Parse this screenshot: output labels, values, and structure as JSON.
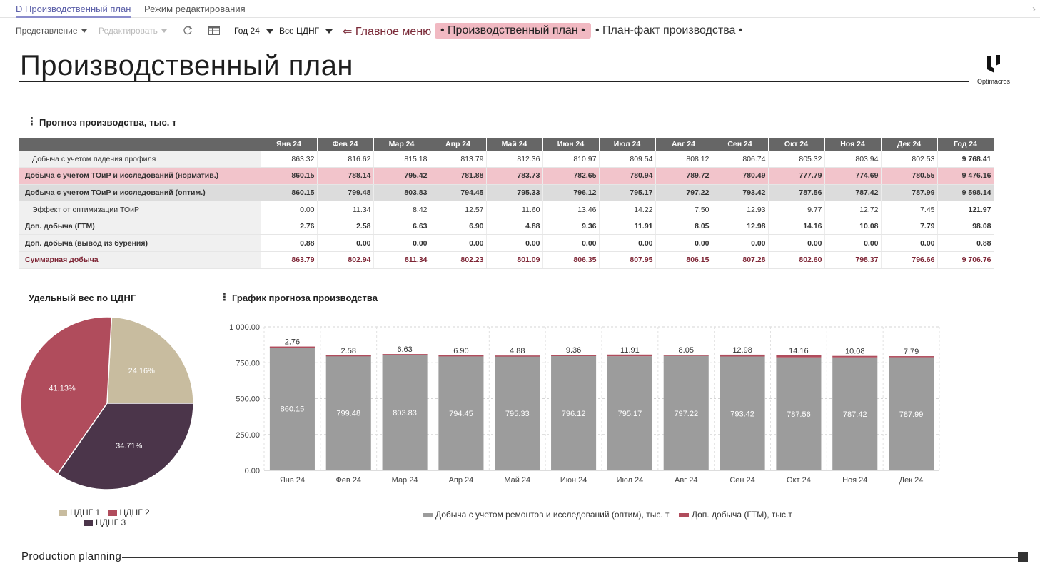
{
  "tabs": [
    {
      "label": "D Производственный план"
    },
    {
      "label": "Режим редактирования"
    }
  ],
  "toolbar": {
    "view_label": "Представление",
    "edit_label": "Редактировать",
    "year_label": "Год 24",
    "cdng_label": "Все ЦДНГ",
    "nav_main": "⇐ Главное меню",
    "nav_plan": "• Производственный план •",
    "nav_planfact": "• План-факт производства •"
  },
  "page": {
    "title": "Производственный план",
    "logo_text": "Optimacros",
    "footer_label": "Production  planning"
  },
  "forecast_table": {
    "title": "Прогноз производства, тыс. т",
    "columns": [
      "Янв 24",
      "Фев 24",
      "Мар 24",
      "Апр 24",
      "Май 24",
      "Июн 24",
      "Июл 24",
      "Авг 24",
      "Сен 24",
      "Окт 24",
      "Ноя 24",
      "Дек 24",
      "Год 24"
    ],
    "rows": [
      {
        "label": "Добыча с учетом падения профиля",
        "values": [
          "863.32",
          "816.62",
          "815.18",
          "813.79",
          "812.36",
          "810.97",
          "809.54",
          "808.12",
          "806.74",
          "805.32",
          "803.94",
          "802.53",
          "9 768.41"
        ]
      },
      {
        "label": "Добыча с учетом ТОиР и исследований (норматив.)",
        "values": [
          "860.15",
          "788.14",
          "795.42",
          "781.88",
          "783.73",
          "782.65",
          "780.94",
          "789.72",
          "780.49",
          "777.79",
          "774.69",
          "780.55",
          "9 476.16"
        ]
      },
      {
        "label": "Добыча с учетом ТОиР и исследований (оптим.)",
        "values": [
          "860.15",
          "799.48",
          "803.83",
          "794.45",
          "795.33",
          "796.12",
          "795.17",
          "797.22",
          "793.42",
          "787.56",
          "787.42",
          "787.99",
          "9 598.14"
        ]
      },
      {
        "label": "Эффект от оптимизации ТОиР",
        "values": [
          "0.00",
          "11.34",
          "8.42",
          "12.57",
          "11.60",
          "13.46",
          "14.22",
          "7.50",
          "12.93",
          "9.77",
          "12.72",
          "7.45",
          "121.97"
        ]
      },
      {
        "label": "Доп. добыча (ГТМ)",
        "values": [
          "2.76",
          "2.58",
          "6.63",
          "6.90",
          "4.88",
          "9.36",
          "11.91",
          "8.05",
          "12.98",
          "14.16",
          "10.08",
          "7.79",
          "98.08"
        ]
      },
      {
        "label": "Доп. добыча (вывод из бурения)",
        "values": [
          "0.88",
          "0.00",
          "0.00",
          "0.00",
          "0.00",
          "0.00",
          "0.00",
          "0.00",
          "0.00",
          "0.00",
          "0.00",
          "0.00",
          "0.88"
        ]
      },
      {
        "label": "Суммарная добыча",
        "values": [
          "863.79",
          "802.94",
          "811.34",
          "802.23",
          "801.09",
          "806.35",
          "807.95",
          "806.15",
          "807.28",
          "802.60",
          "798.37",
          "796.66",
          "9 706.76"
        ]
      }
    ]
  },
  "colors": {
    "pie_cdng1": "#c8bc9f",
    "pie_cdng2": "#b04c5c",
    "pie_cdng3": "#4b354a",
    "bar_base": "#9c9c9c",
    "bar_top": "#b04c5c"
  },
  "chart_data": [
    {
      "type": "pie",
      "title": "Удельный вес по ЦДНГ",
      "labels": [
        "ЦДНГ 1",
        "ЦДНГ 2",
        "ЦДНГ 3"
      ],
      "values": [
        24.16,
        41.13,
        34.71
      ],
      "value_labels": [
        "24.16%",
        "41.13%",
        "34.71%"
      ],
      "legend": "bottom"
    },
    {
      "type": "bar",
      "stacked": true,
      "title": "График прогноза производства",
      "categories": [
        "Янв 24",
        "Фев 24",
        "Мар 24",
        "Апр 24",
        "Май 24",
        "Июн 24",
        "Июл 24",
        "Авг 24",
        "Сен 24",
        "Окт 24",
        "Ноя 24",
        "Дек 24"
      ],
      "series": [
        {
          "name": "Добыча с учетом ремонтов и исследований (оптим), тыс. т",
          "values": [
            860.15,
            799.48,
            803.83,
            794.45,
            795.33,
            796.12,
            795.17,
            797.22,
            793.42,
            787.56,
            787.42,
            787.99
          ]
        },
        {
          "name": "Доп. добыча (ГТМ), тыс.т",
          "values": [
            2.76,
            2.58,
            6.63,
            6.9,
            4.88,
            9.36,
            11.91,
            8.05,
            12.98,
            14.16,
            10.08,
            7.79
          ]
        }
      ],
      "ylim": [
        0,
        1000
      ],
      "yticks": [
        0,
        250,
        500,
        750,
        1000
      ],
      "ytick_labels": [
        "0.00",
        "250.00",
        "500.00",
        "750.00",
        "1 000.00"
      ],
      "grid": true,
      "legend": "bottom"
    }
  ]
}
